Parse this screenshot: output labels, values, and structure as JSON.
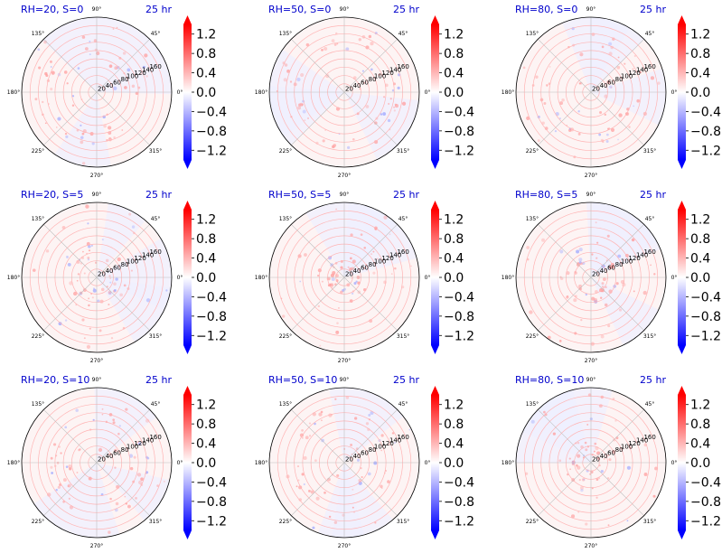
{
  "colors": {
    "title": "#0000cc",
    "positive": "#ff0000",
    "negative": "#0000ff",
    "grid": "#ffb4b4",
    "spoke": "#bfbfbf",
    "outline": "#000000"
  },
  "chart_data": {
    "type": "heatmap",
    "projection": "polar",
    "colormap": "bwr",
    "theta_ticks": [
      "0°",
      "45°",
      "90°",
      "135°",
      "180°",
      "225°",
      "270°",
      "315°"
    ],
    "r_ticks": [
      "20",
      "40",
      "60",
      "80",
      "100",
      "120",
      "140",
      "160"
    ],
    "r_range": [
      0,
      180
    ],
    "colorbar": {
      "ticks": [
        "1.2",
        "0.8",
        "0.4",
        "0.0",
        "−0.4",
        "−0.8",
        "−1.2"
      ],
      "range": [
        -1.4,
        1.4
      ],
      "extend": "both"
    },
    "panels": [
      {
        "label": "RH=20, S=0",
        "time": "25 hr"
      },
      {
        "label": "RH=50, S=0",
        "time": "25 hr"
      },
      {
        "label": "RH=80, S=0",
        "time": "25 hr"
      },
      {
        "label": "RH=20, S=5",
        "time": "25 hr"
      },
      {
        "label": "RH=50, S=5",
        "time": "25 hr"
      },
      {
        "label": "RH=80, S=5",
        "time": "25 hr"
      },
      {
        "label": "RH=20, S=10",
        "time": "25 hr"
      },
      {
        "label": "RH=50, S=10",
        "time": "25 hr"
      },
      {
        "label": "RH=80, S=10",
        "time": "25 hr"
      }
    ]
  }
}
